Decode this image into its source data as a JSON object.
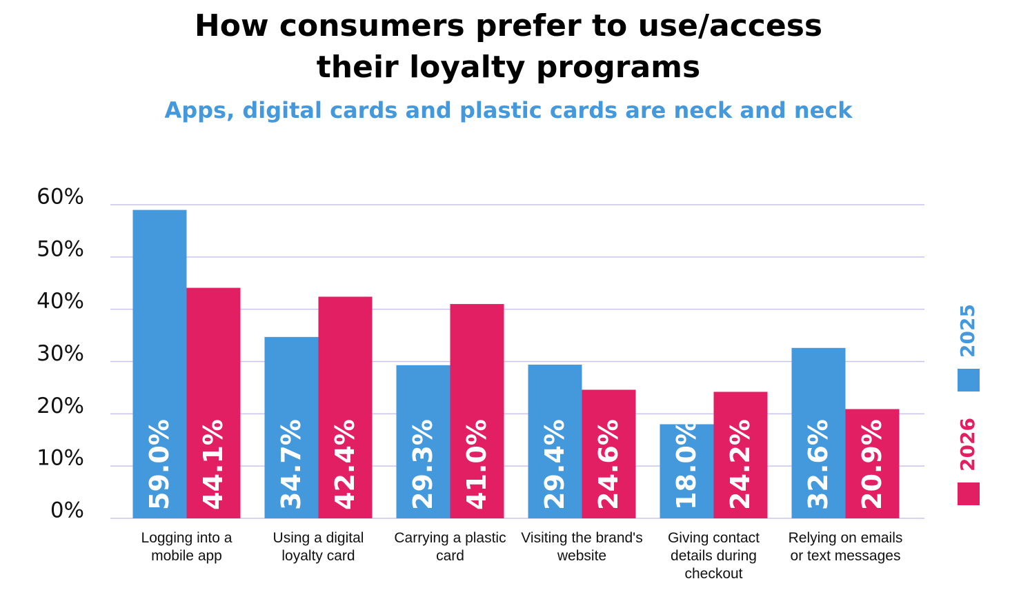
{
  "chart_data": {
    "type": "bar",
    "title": "How consumers prefer to use/access their loyalty programs",
    "subtitle": "Apps, digital cards and plastic cards are neck and neck",
    "categories": [
      "Logging into a mobile app",
      "Using a digital loyalty card",
      "Carrying a plastic card",
      "Visiting the brand's website",
      "Giving contact details during checkout",
      "Relying on emails or text messages"
    ],
    "series": [
      {
        "name": "2025",
        "color": "#4499dd",
        "values": [
          59.0,
          34.7,
          29.3,
          29.4,
          18.0,
          32.6
        ],
        "value_labels": [
          "59.0%",
          "34.7%",
          "29.3%",
          "29.4%",
          "18.0%",
          "32.6%"
        ]
      },
      {
        "name": "2026",
        "color": "#e31f63",
        "values": [
          44.1,
          42.4,
          41.0,
          24.6,
          24.2,
          20.9
        ],
        "value_labels": [
          "44.1%",
          "42.4%",
          "41.0%",
          "24.6%",
          "24.2%",
          "20.9%"
        ]
      }
    ],
    "ylim": [
      0,
      60
    ],
    "yticks": [
      {
        "value": 0,
        "label": "0%"
      },
      {
        "value": 10,
        "label": "10%"
      },
      {
        "value": 20,
        "label": "20%"
      },
      {
        "value": 30,
        "label": "30%"
      },
      {
        "value": 40,
        "label": "40%"
      },
      {
        "value": 50,
        "label": "50%"
      },
      {
        "value": 60,
        "label": "60%"
      }
    ],
    "grid": true
  }
}
